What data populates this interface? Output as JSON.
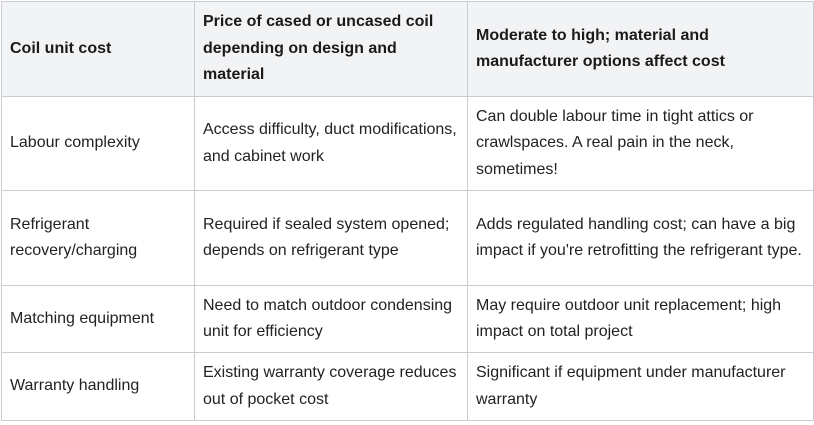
{
  "table": {
    "header": [
      "Coil unit cost",
      "Price of cased or uncased coil depending on design and material",
      "Moderate to high; material and manufacturer options affect cost"
    ],
    "rows": [
      [
        "Labour complexity",
        "Access difficulty, duct modifications, and cabinet work",
        "Can double labour time in tight attics or crawlspaces. A real pain in the neck, sometimes!"
      ],
      [
        "Refrigerant recovery/charging",
        "Required if sealed system opened; depends on refrigerant type",
        "Adds regulated handling cost; can have a big impact if you're retrofitting the refrigerant type."
      ],
      [
        "Matching equipment",
        "Need to match outdoor condensing unit for efficiency",
        "May require outdoor unit replacement; high impact on total project"
      ],
      [
        "Warranty handling",
        "Existing warranty coverage reduces out of pocket cost",
        "Significant if equipment under manufacturer warranty"
      ]
    ]
  }
}
